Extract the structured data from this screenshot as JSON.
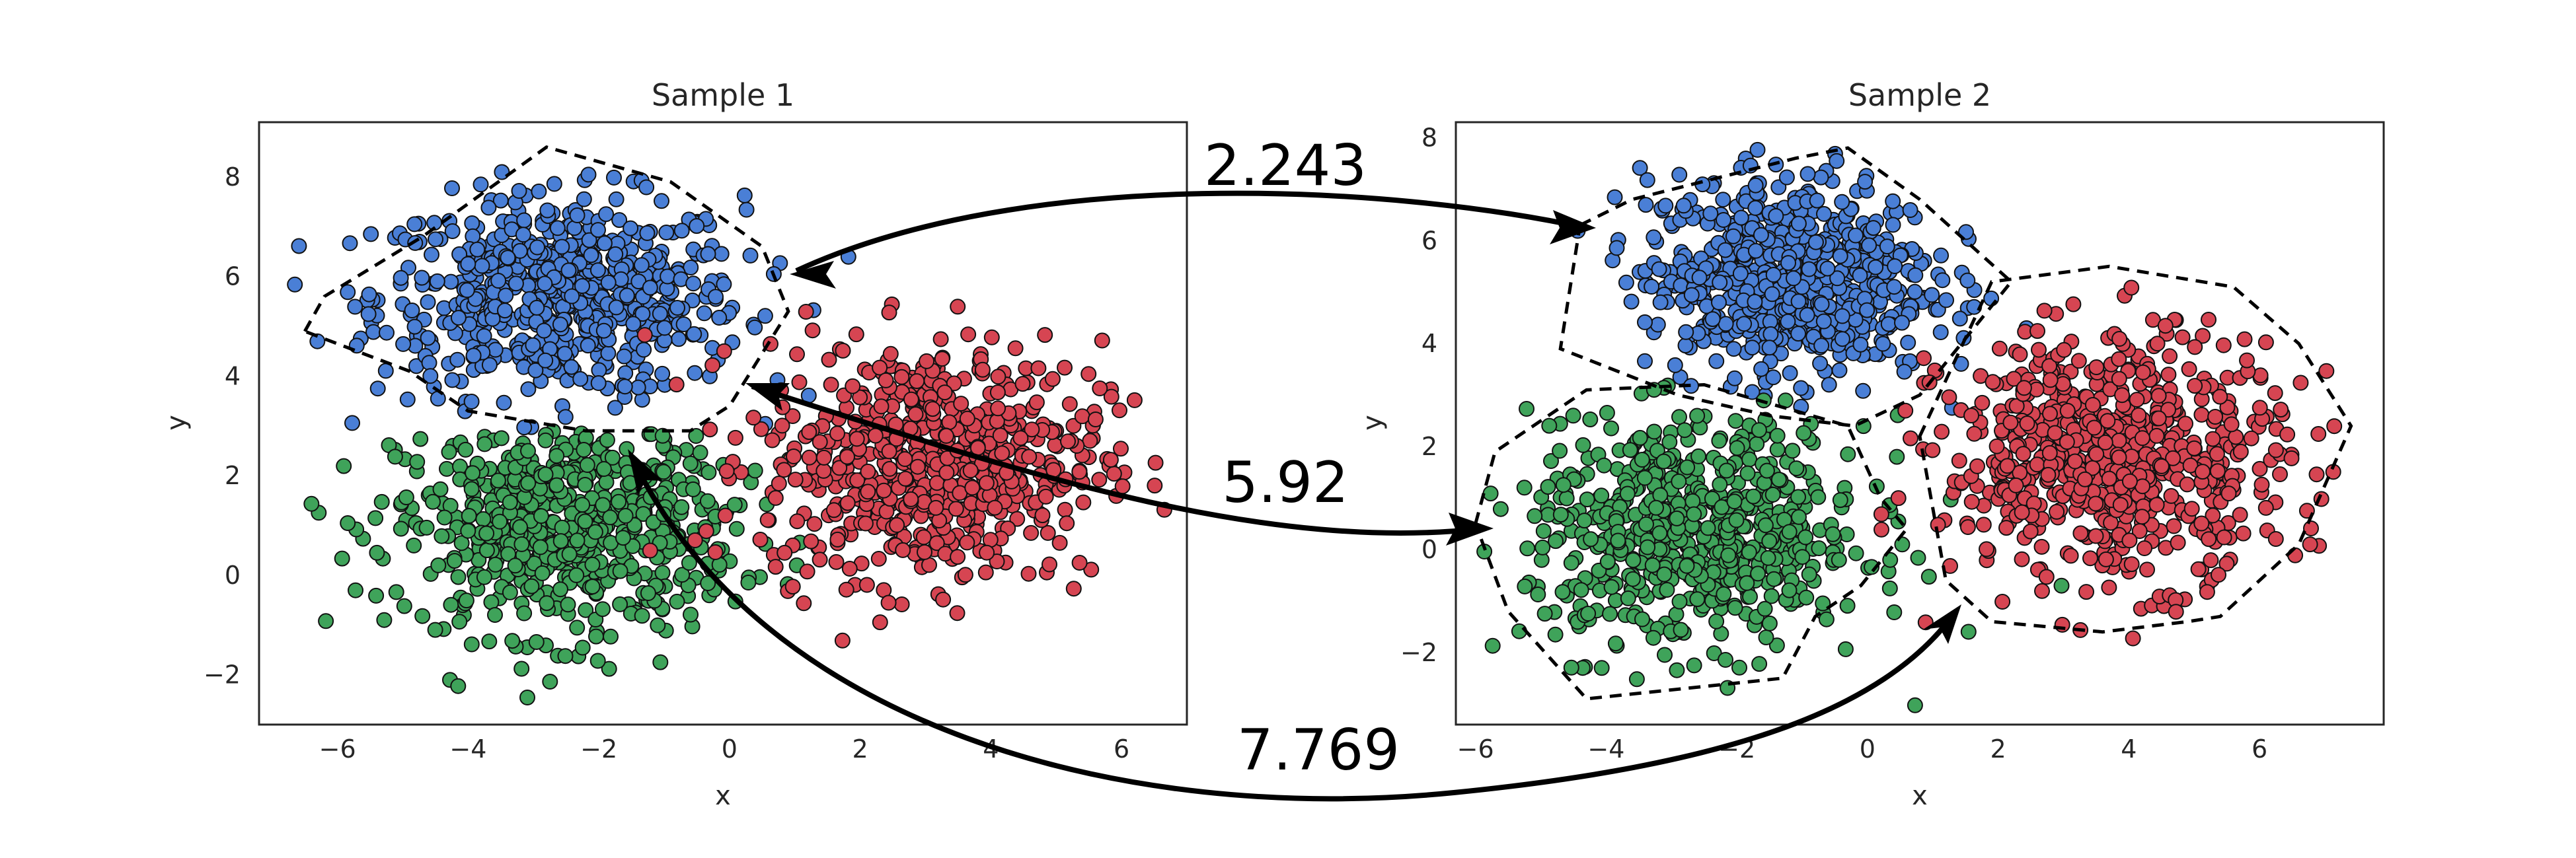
{
  "chart_data": [
    {
      "type": "scatter",
      "title": "Sample 1",
      "xlabel": "x",
      "ylabel": "y",
      "xlim": [
        -7.2,
        7.0
      ],
      "ylim": [
        -3.0,
        9.1
      ],
      "xticks": [
        -6,
        -4,
        -2,
        0,
        2,
        4,
        6
      ],
      "yticks": [
        -2,
        0,
        2,
        4,
        6,
        8
      ],
      "xtick_labels": [
        "−6",
        "−4",
        "−2",
        "0",
        "2",
        "4",
        "6"
      ],
      "ytick_labels": [
        "−2",
        "0",
        "2",
        "4",
        "6",
        "8"
      ],
      "grid": false,
      "clusters": [
        {
          "color": "#4a7fd6",
          "center": [
            -2.6,
            5.6
          ],
          "spread": [
            1.4,
            1.0
          ],
          "clip_y_min": 2.9,
          "hull": [
            [
              -6.5,
              4.9
            ],
            [
              -6.2,
              5.6
            ],
            [
              -4.7,
              6.8
            ],
            [
              -2.8,
              8.6
            ],
            [
              -0.9,
              7.9
            ],
            [
              0.5,
              6.6
            ],
            [
              0.9,
              5.3
            ],
            [
              0.0,
              3.4
            ],
            [
              -0.6,
              2.9
            ],
            [
              -2.2,
              2.9
            ],
            [
              -4.0,
              3.3
            ],
            [
              -4.9,
              4.1
            ]
          ]
        },
        {
          "color": "#3fa35a",
          "center": [
            -2.5,
            1.0
          ],
          "spread": [
            1.3,
            1.1
          ],
          "clip_y_max": 2.9,
          "hull": []
        },
        {
          "color": "#d64552",
          "center": [
            3.1,
            2.3
          ],
          "spread": [
            1.3,
            1.2
          ],
          "hull": []
        }
      ]
    },
    {
      "type": "scatter",
      "title": "Sample 2",
      "xlabel": "x",
      "ylabel": "y",
      "xlim": [
        -6.3,
        7.9
      ],
      "ylim": [
        -3.4,
        8.3
      ],
      "xticks": [
        -6,
        -4,
        -2,
        0,
        2,
        4,
        6
      ],
      "yticks": [
        -2,
        0,
        2,
        4,
        6,
        8
      ],
      "xtick_labels": [
        "−6",
        "−4",
        "−2",
        "0",
        "2",
        "4",
        "6"
      ],
      "ytick_labels": [
        "−2",
        "0",
        "2",
        "4",
        "6",
        "8"
      ],
      "grid": false,
      "clusters": [
        {
          "color": "#4a7fd6",
          "center": [
            -1.2,
            5.3
          ],
          "spread": [
            1.1,
            1.0
          ],
          "clip_y_min": 2.6,
          "hull": [
            [
              -4.4,
              6.3
            ],
            [
              -3.6,
              6.8
            ],
            [
              -1.1,
              7.6
            ],
            [
              -0.3,
              7.8
            ],
            [
              0.8,
              6.8
            ],
            [
              2.2,
              5.2
            ],
            [
              0.8,
              3.0
            ],
            [
              -0.2,
              2.4
            ],
            [
              -1.5,
              2.6
            ],
            [
              -2.9,
              3.0
            ],
            [
              -4.7,
              3.9
            ]
          ]
        },
        {
          "color": "#3fa35a",
          "center": [
            -2.6,
            0.3
          ],
          "spread": [
            1.3,
            1.1
          ],
          "clip_y_max": 3.2,
          "hull": [
            [
              -6.0,
              0.5
            ],
            [
              -5.7,
              1.9
            ],
            [
              -4.3,
              3.1
            ],
            [
              -2.5,
              3.2
            ],
            [
              -0.3,
              2.4
            ],
            [
              0.2,
              1.0
            ],
            [
              0.6,
              0.4
            ],
            [
              -0.1,
              -0.7
            ],
            [
              -0.8,
              -1.3
            ],
            [
              -1.3,
              -2.5
            ],
            [
              -4.3,
              -2.9
            ],
            [
              -5.5,
              -1.2
            ]
          ]
        },
        {
          "color": "#d64552",
          "center": [
            3.8,
            1.8
          ],
          "spread": [
            1.3,
            1.2
          ],
          "hull": [
            [
              0.8,
              2.2
            ],
            [
              1.9,
              5.2
            ],
            [
              3.7,
              5.5
            ],
            [
              5.6,
              5.1
            ],
            [
              6.6,
              4.0
            ],
            [
              7.4,
              2.4
            ],
            [
              6.6,
              0.1
            ],
            [
              5.4,
              -1.3
            ],
            [
              4.9,
              -1.4
            ],
            [
              3.6,
              -1.6
            ],
            [
              1.9,
              -1.4
            ],
            [
              1.2,
              -0.6
            ]
          ]
        }
      ]
    }
  ],
  "distances": [
    "2.243",
    "5.92",
    "7.769"
  ]
}
